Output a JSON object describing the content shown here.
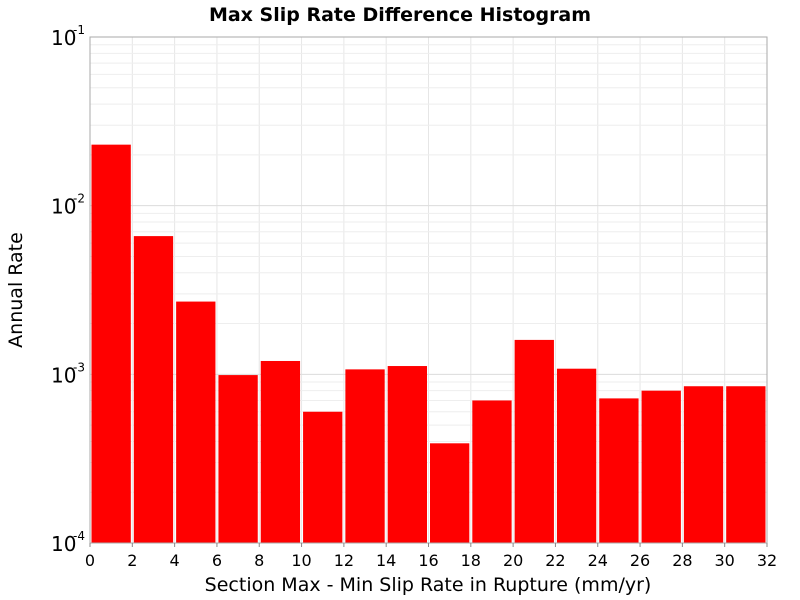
{
  "chart_data": {
    "type": "bar",
    "title": "Max Slip Rate Difference Histogram",
    "xlabel": "Section Max - Min Slip Rate in Rupture (mm/yr)",
    "ylabel": "Annual Rate",
    "xlim": [
      0,
      32
    ],
    "ylim": [
      0.0001,
      0.1
    ],
    "yscale": "log",
    "grid": true,
    "bar_color": "#ff0000",
    "bin_width": 2,
    "bins": [
      {
        "x0": 0,
        "x1": 2,
        "value": 0.023
      },
      {
        "x0": 2,
        "x1": 4,
        "value": 0.0066
      },
      {
        "x0": 4,
        "x1": 6,
        "value": 0.0027
      },
      {
        "x0": 6,
        "x1": 8,
        "value": 0.00099
      },
      {
        "x0": 8,
        "x1": 10,
        "value": 0.0012
      },
      {
        "x0": 10,
        "x1": 12,
        "value": 0.0006
      },
      {
        "x0": 12,
        "x1": 14,
        "value": 0.00107
      },
      {
        "x0": 14,
        "x1": 16,
        "value": 0.00112
      },
      {
        "x0": 16,
        "x1": 18,
        "value": 0.00039
      },
      {
        "x0": 18,
        "x1": 20,
        "value": 0.0007
      },
      {
        "x0": 20,
        "x1": 22,
        "value": 0.0016
      },
      {
        "x0": 22,
        "x1": 24,
        "value": 0.00108
      },
      {
        "x0": 24,
        "x1": 26,
        "value": 0.00072
      },
      {
        "x0": 26,
        "x1": 28,
        "value": 0.0008
      },
      {
        "x0": 28,
        "x1": 30,
        "value": 0.00085
      },
      {
        "x0": 30,
        "x1": 32,
        "value": 0.00085
      }
    ],
    "x_ticks": [
      "0",
      "2",
      "4",
      "6",
      "8",
      "10",
      "12",
      "14",
      "16",
      "18",
      "20",
      "22",
      "24",
      "26",
      "28",
      "30",
      "32"
    ],
    "y_ticks": [
      {
        "base": "10",
        "exp": "-1"
      },
      {
        "base": "10",
        "exp": "-2"
      },
      {
        "base": "10",
        "exp": "-3"
      },
      {
        "base": "10",
        "exp": "-4"
      }
    ]
  }
}
